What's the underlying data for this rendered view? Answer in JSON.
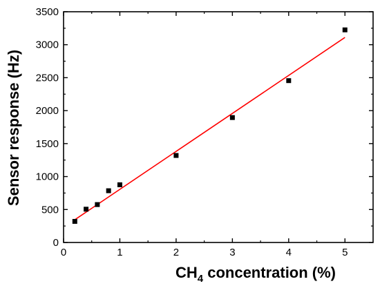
{
  "chart_data": {
    "type": "scatter",
    "title": "",
    "xlabel": {
      "main": "CH",
      "subscript": "4",
      "rest": " concentration (%)"
    },
    "ylabel": "Sensor response (Hz)",
    "xlim": [
      0,
      5.5
    ],
    "ylim": [
      0,
      3500
    ],
    "x_ticks": [
      0,
      1,
      2,
      3,
      4,
      5
    ],
    "y_ticks": [
      0,
      500,
      1000,
      1500,
      2000,
      2500,
      3000,
      3500
    ],
    "grid": false,
    "legend": "none",
    "series": [
      {
        "kind": "markers",
        "marker": "square",
        "color": "#000000",
        "points": [
          {
            "x": 0.2,
            "y": 320
          },
          {
            "x": 0.4,
            "y": 505
          },
          {
            "x": 0.6,
            "y": 575
          },
          {
            "x": 0.8,
            "y": 785
          },
          {
            "x": 1.0,
            "y": 875
          },
          {
            "x": 2.0,
            "y": 1320
          },
          {
            "x": 3.0,
            "y": 1895
          },
          {
            "x": 4.0,
            "y": 2455
          },
          {
            "x": 5.0,
            "y": 3225
          }
        ]
      },
      {
        "kind": "fit-line",
        "color": "#ff0000",
        "points": [
          {
            "x": 0.2,
            "y": 345
          },
          {
            "x": 5.0,
            "y": 3110
          }
        ]
      }
    ]
  }
}
